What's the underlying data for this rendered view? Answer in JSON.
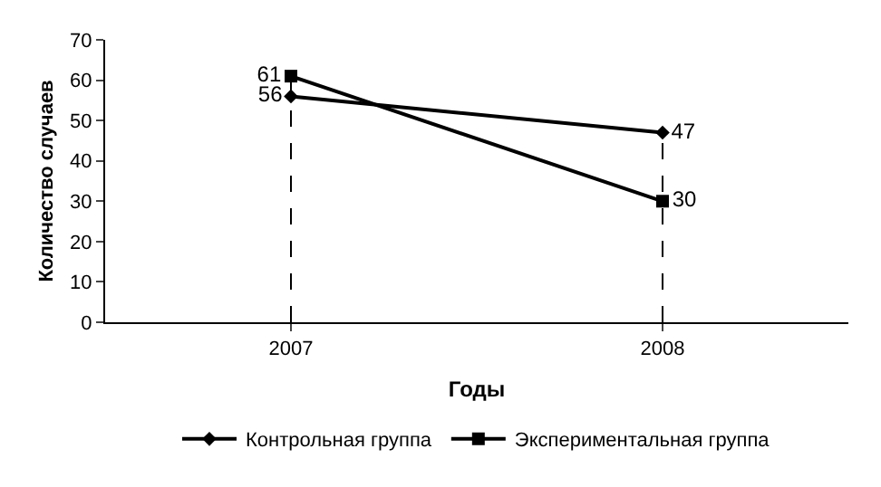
{
  "chart_data": {
    "type": "line",
    "xlabel": "Годы",
    "ylabel": "Количество случаев",
    "categories": [
      "2007",
      "2008"
    ],
    "series": [
      {
        "name": "Контрольная группа",
        "color": "#000000",
        "marker": "diamond",
        "values": [
          56,
          47
        ]
      },
      {
        "name": "Экспериментальная группа",
        "color": "#000000",
        "marker": "square",
        "values": [
          61,
          30
        ]
      }
    ],
    "ylim": [
      0,
      70
    ],
    "yticks": [
      0,
      10,
      20,
      30,
      40,
      50,
      60,
      70
    ],
    "grid": false,
    "legend": "bottom",
    "data_labels": true,
    "ref_lines": [
      {
        "axis": "x",
        "value": "2007",
        "line_style": "dashed",
        "color": "#000000"
      },
      {
        "axis": "x",
        "value": "2008",
        "line_style": "dashed",
        "color": "#000000"
      }
    ]
  }
}
